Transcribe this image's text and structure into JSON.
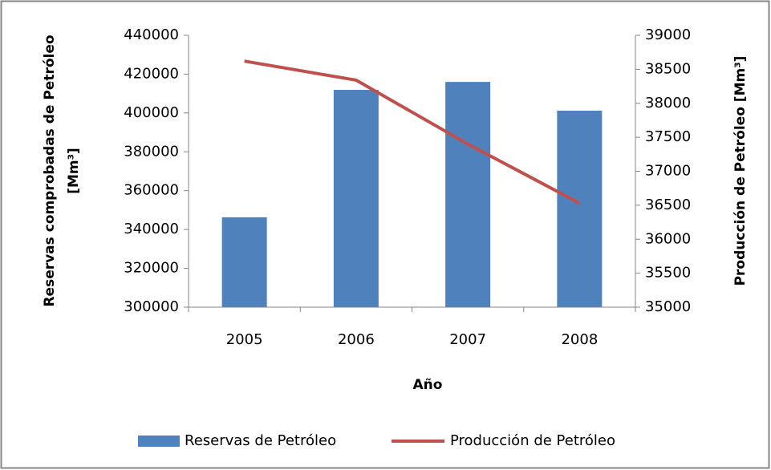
{
  "chart_data": {
    "type": "bar",
    "categories": [
      "2005",
      "2006",
      "2007",
      "2008"
    ],
    "xlabel": "Año",
    "ylabel": [
      "Reservas comprobadas de Petróleo",
      "[Mm³]"
    ],
    "y2label": "Producción de Petróleo [Mm³]",
    "series": [
      {
        "name": "Reservas de Petróleo",
        "type": "bar",
        "color": "#4f81bd",
        "values": [
          346300,
          411900,
          416000,
          401200
        ]
      },
      {
        "name": "Producción de Petróleo",
        "type": "line",
        "axis": "y2",
        "color": "#c0504d",
        "values": [
          38620,
          38340,
          37400,
          36530
        ]
      }
    ],
    "ylim": [
      300000,
      440000
    ],
    "yticks": [
      300000,
      320000,
      340000,
      360000,
      380000,
      400000,
      420000,
      440000
    ],
    "y2lim": [
      35000,
      39000
    ],
    "y2ticks": [
      35000,
      35500,
      36000,
      36500,
      37000,
      37500,
      38000,
      38500,
      39000
    ],
    "legend": "bottom"
  }
}
